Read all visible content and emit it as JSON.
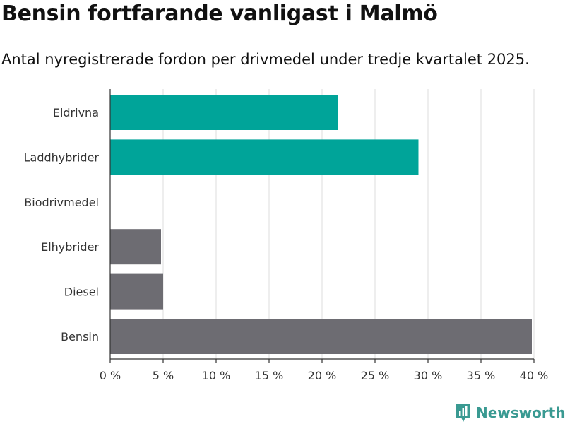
{
  "header": {
    "title": "Bensin fortfarande vanligast i Malmö",
    "subtitle": "Antal nyregistrerade fordon per drivmedel under tredje kvartalet 2025."
  },
  "brand": {
    "name": "Newsworthy",
    "color": "#3a9a92"
  },
  "chart_data": {
    "type": "bar",
    "orientation": "horizontal",
    "categories": [
      "Eldrivna",
      "Laddhybrider",
      "Biodrivmedel",
      "Elhybrider",
      "Diesel",
      "Bensin"
    ],
    "values": [
      21.5,
      29.1,
      0,
      4.8,
      5.0,
      39.8
    ],
    "colors": [
      "#00a499",
      "#00a499",
      "#00a499",
      "#6d6c72",
      "#6d6c72",
      "#6d6c72"
    ],
    "xlim": [
      0,
      40
    ],
    "xticks": [
      0,
      5,
      10,
      15,
      20,
      25,
      30,
      35,
      40
    ],
    "tick_labels": [
      "0 %",
      "5 %",
      "10 %",
      "15 %",
      "20 %",
      "25 %",
      "30 %",
      "35 %",
      "40 %"
    ],
    "grid": true
  }
}
